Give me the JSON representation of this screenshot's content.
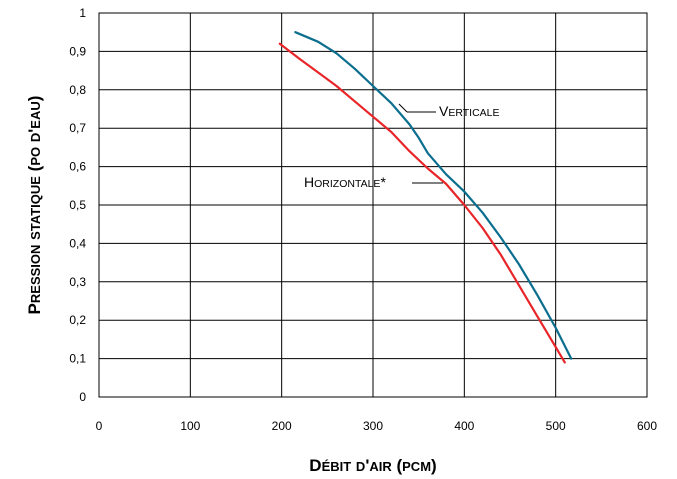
{
  "chart_data": {
    "type": "line",
    "xlabel": "Débit d'air (pcm)",
    "ylabel": "Pression statique (po d'eau)",
    "xlim": [
      0,
      600
    ],
    "ylim": [
      0,
      1
    ],
    "xticks": [
      0,
      100,
      200,
      300,
      400,
      500,
      600
    ],
    "yticks": [
      0,
      0.1,
      0.2,
      0.3,
      0.4,
      0.5,
      0.6,
      0.7,
      0.8,
      0.9,
      1
    ],
    "x_tick_labels": [
      "0",
      "100",
      "200",
      "300",
      "400",
      "500",
      "600"
    ],
    "y_tick_labels": [
      "0",
      "0,1",
      "0,2",
      "0,3",
      "0,4",
      "0,5",
      "0,6",
      "0,7",
      "0,8",
      "0,9",
      "1"
    ],
    "grid": true,
    "series": [
      {
        "name": "Verticale",
        "color": "#0b6e8e",
        "x": [
          215,
          240,
          260,
          280,
          300,
          320,
          340,
          350,
          360,
          380,
          400,
          420,
          440,
          460,
          480,
          500,
          517
        ],
        "y": [
          0.95,
          0.925,
          0.895,
          0.855,
          0.81,
          0.765,
          0.71,
          0.675,
          0.635,
          0.58,
          0.535,
          0.48,
          0.415,
          0.345,
          0.265,
          0.18,
          0.1
        ]
      },
      {
        "name": "Horizontale*",
        "color": "#e8262a",
        "x": [
          198,
          220,
          240,
          260,
          280,
          300,
          320,
          340,
          360,
          380,
          400,
          420,
          440,
          460,
          480,
          500,
          510
        ],
        "y": [
          0.92,
          0.88,
          0.845,
          0.81,
          0.77,
          0.73,
          0.69,
          0.64,
          0.595,
          0.555,
          0.5,
          0.44,
          0.37,
          0.29,
          0.21,
          0.13,
          0.09
        ]
      }
    ]
  }
}
